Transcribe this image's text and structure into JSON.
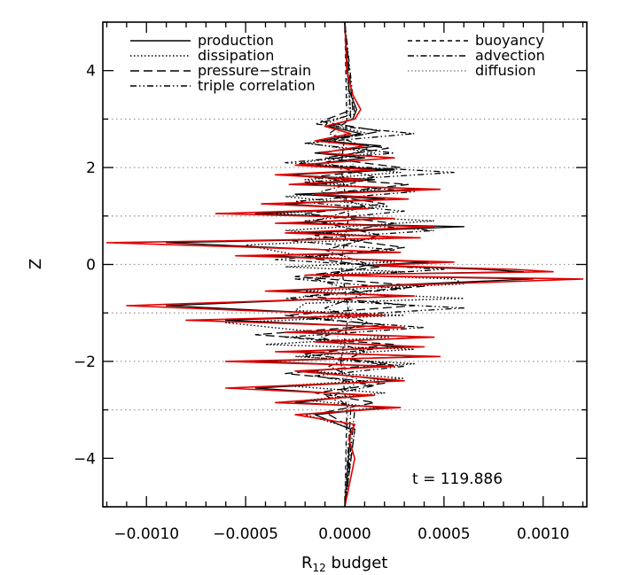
{
  "chart_data": {
    "type": "line",
    "xlabel": "R",
    "xlabel_sub": "12",
    "xlabel_suffix": " budget",
    "ylabel": "Z",
    "xlim": [
      -0.00122,
      0.00122
    ],
    "ylim": [
      -5,
      5
    ],
    "x_ticks": [
      -0.001,
      -0.0005,
      0.0,
      0.0005,
      0.001
    ],
    "x_tick_labels": [
      "−0.0010",
      "−0.0005",
      "0.0000",
      "0.0005",
      "0.0010"
    ],
    "y_ticks": [
      -4,
      -2,
      0,
      2,
      4
    ],
    "y_tick_labels": [
      "−4",
      "−2",
      "0",
      "2",
      "4"
    ],
    "reference_lines_z": [
      -3,
      -2,
      -1,
      0,
      1,
      2,
      3
    ],
    "annotation": "t = 119.886",
    "legend": [
      {
        "label": "production",
        "style": "solid",
        "color": "#000000"
      },
      {
        "label": "dissipation",
        "style": "dotted",
        "color": "#000000"
      },
      {
        "label": "pressure−strain",
        "style": "longdash",
        "color": "#000000"
      },
      {
        "label": "triple correlation",
        "style": "dashdotdot",
        "color": "#000000"
      },
      {
        "label": "buoyancy",
        "style": "dashed",
        "color": "#000000"
      },
      {
        "label": "advection",
        "style": "dashdot",
        "color": "#000000"
      },
      {
        "label": "diffusion",
        "style": "dotted-gray",
        "color": "#888888"
      }
    ],
    "series": [
      {
        "style": "solid",
        "color": "#e00000",
        "x": [
          0,
          1e-05,
          4e-05,
          8e-05,
          5e-05,
          -0.0001,
          3e-05,
          -0.00015,
          0.0001,
          -0.00012,
          0.00025,
          -0.00025,
          0.00015,
          -0.00035,
          0.0001,
          -0.00028,
          0.00048,
          -0.00015,
          0.00032,
          -0.00042,
          0.00012,
          -0.00065,
          0.00025,
          -0.00035,
          0.00045,
          -0.0003,
          0.00038,
          -0.0012,
          -0.00042,
          0.00028,
          -0.00055,
          0.00055,
          0.00015,
          0.00085,
          0.00105,
          -0.0002,
          0.0012,
          0.00015,
          -0.0004,
          0.00035,
          -0.0011,
          -0.0005,
          0.0002,
          -0.0008,
          0.0003,
          -0.0003,
          0.00045,
          -0.00015,
          0.0004,
          -0.00035,
          0.00048,
          -0.0006,
          0.00025,
          -0.00025,
          0.0003,
          -0.0006,
          0.00015,
          -0.00035,
          0.00028,
          -0.00025,
          5e-05,
          2e-05,
          5e-05,
          0
        ],
        "y": [
          5,
          4,
          3.5,
          3.2,
          3.0,
          2.85,
          2.7,
          2.55,
          2.45,
          2.3,
          2.2,
          2.05,
          1.95,
          1.85,
          1.75,
          1.65,
          1.55,
          1.45,
          1.35,
          1.25,
          1.15,
          1.05,
          0.95,
          0.85,
          0.78,
          0.65,
          0.55,
          0.45,
          0.35,
          0.25,
          0.18,
          0.05,
          -0.02,
          -0.1,
          -0.15,
          -0.22,
          -0.3,
          -0.45,
          -0.55,
          -0.65,
          -0.85,
          -0.95,
          -1.05,
          -1.15,
          -1.3,
          -1.4,
          -1.5,
          -1.6,
          -1.7,
          -1.8,
          -1.9,
          -2.0,
          -2.1,
          -2.2,
          -2.4,
          -2.55,
          -2.7,
          -2.85,
          -2.95,
          -3.1,
          -3.3,
          -3.6,
          -4,
          -5
        ]
      },
      {
        "style": "solid",
        "color": "#000000",
        "x": [
          0,
          2e-05,
          6e-05,
          4e-05,
          -8e-05,
          8e-05,
          -0.00012,
          0.00018,
          -0.00015,
          0.0001,
          -0.0002,
          0.00025,
          -0.0003,
          0.00015,
          -0.0002,
          0.0004,
          -0.00025,
          0.0002,
          -0.0003,
          0.0001,
          -0.00045,
          0.0002,
          -0.00025,
          0.0006,
          -0.0002,
          0.00035,
          -0.0009,
          -0.00035,
          0.0002,
          -0.0004,
          0.00042,
          0.0001,
          0.0007,
          0.0009,
          -0.00015,
          0.00095,
          0.0001,
          -0.0003,
          0.00028,
          -0.0009,
          -0.0004,
          0.00015,
          -0.0006,
          0.00025,
          -0.00022,
          0.0004,
          -0.0001,
          0.0003,
          -0.00025,
          0.0004,
          -0.00045,
          0.0002,
          -0.0002,
          0.00025,
          -0.00045,
          0.0001,
          -0.00025,
          0.0002,
          -0.00015,
          3e-05,
          0
        ],
        "y": [
          5,
          3.6,
          3.2,
          3.0,
          2.85,
          2.7,
          2.55,
          2.45,
          2.3,
          2.2,
          2.05,
          1.95,
          1.85,
          1.75,
          1.65,
          1.55,
          1.45,
          1.35,
          1.25,
          1.15,
          1.05,
          0.95,
          0.85,
          0.78,
          0.65,
          0.55,
          0.45,
          0.35,
          0.25,
          0.18,
          0.05,
          -0.02,
          -0.1,
          -0.15,
          -0.22,
          -0.3,
          -0.45,
          -0.55,
          -0.65,
          -0.85,
          -0.95,
          -1.05,
          -1.15,
          -1.3,
          -1.4,
          -1.5,
          -1.6,
          -1.7,
          -1.8,
          -1.9,
          -2.0,
          -2.1,
          -2.2,
          -2.4,
          -2.55,
          -2.7,
          -2.85,
          -2.95,
          -3.1,
          -3.4,
          -5
        ]
      },
      {
        "style": "dotted",
        "color": "#000000",
        "x": [
          0,
          3e-05,
          -0.0001,
          0.00012,
          -0.00018,
          0.00015,
          -0.00022,
          0.00028,
          -0.0002,
          0.00018,
          -0.0003,
          0.00022,
          -0.00035,
          0.00045,
          -0.0003,
          0.0003,
          -0.0005,
          -0.00025,
          0.00025,
          -0.0003,
          0.0003,
          -0.00015,
          0.00055,
          0.0006,
          -0.0002,
          0.0006,
          -0.0002,
          -0.00025,
          0.0003,
          -0.0006,
          -0.00025,
          0.00022,
          -0.0004,
          0.00035,
          -0.00025,
          0.00035,
          -0.00018,
          0.0003,
          -0.0003,
          0.0002,
          -0.0002,
          0.00018,
          -0.0002,
          5e-05,
          0
        ],
        "y": [
          5,
          3.1,
          2.9,
          2.7,
          2.5,
          2.3,
          2.1,
          1.9,
          1.75,
          1.55,
          1.4,
          1.2,
          1.05,
          0.9,
          0.7,
          0.55,
          0.4,
          0.2,
          0.05,
          -0.05,
          -0.15,
          -0.2,
          -0.3,
          -0.4,
          -0.55,
          -0.7,
          -0.8,
          -0.95,
          -1.05,
          -1.2,
          -1.35,
          -1.5,
          -1.65,
          -1.75,
          -1.9,
          -2.05,
          -2.2,
          -2.35,
          -2.5,
          -2.65,
          -2.8,
          -2.95,
          -3.1,
          -3.4,
          -5
        ]
      },
      {
        "style": "longdash",
        "color": "#000000",
        "x": [
          0,
          4e-05,
          -0.00012,
          0.00018,
          -8e-05,
          0.00022,
          -0.0001,
          0.00028,
          -0.00018,
          0.00032,
          -0.00012,
          0.0002,
          -0.0002,
          0.00025,
          -0.00015,
          0.0003,
          -0.00022,
          0.00018,
          -0.00025,
          0.0004,
          -0.0002,
          0.00035,
          -0.0003,
          0.0002,
          -0.00045,
          0.00025,
          -0.0002,
          0.00022,
          -0.0003,
          0.0002,
          -0.00015,
          0.00015,
          -0.0001,
          5e-05,
          0
        ],
        "y": [
          5,
          3.2,
          2.95,
          2.75,
          2.55,
          2.4,
          2.2,
          2.0,
          1.8,
          1.65,
          1.45,
          1.25,
          1.05,
          0.85,
          0.6,
          0.35,
          0.15,
          -0.05,
          -0.25,
          -0.45,
          -0.65,
          -0.85,
          -1.05,
          -1.25,
          -1.45,
          -1.65,
          -1.85,
          -2.05,
          -2.25,
          -2.45,
          -2.65,
          -2.85,
          -3.05,
          -3.4,
          -5
        ]
      },
      {
        "style": "dashdotdot",
        "color": "#000000",
        "x": [
          0,
          5e-05,
          -0.00015,
          0.00035,
          -0.0002,
          0.00025,
          -0.0003,
          0.00055,
          -0.0002,
          0.00035,
          -0.00025,
          0.0003,
          -0.0002,
          0.00045,
          -0.0003,
          0.00025,
          -0.00035,
          0.0005,
          -0.00025,
          0.0003,
          -0.0003,
          0.0006,
          -0.00025,
          0.0004,
          -0.0003,
          0.00025,
          -0.0002,
          0.0003,
          -0.00015,
          0.00015,
          -0.0001,
          5e-05,
          0
        ],
        "y": [
          5,
          3.1,
          2.9,
          2.7,
          2.5,
          2.3,
          2.1,
          1.9,
          1.7,
          1.5,
          1.3,
          1.1,
          0.9,
          0.7,
          0.5,
          0.3,
          0.1,
          -0.1,
          -0.3,
          -0.5,
          -0.7,
          -0.9,
          -1.1,
          -1.3,
          -1.5,
          -1.7,
          -1.9,
          -2.1,
          -2.3,
          -2.5,
          -2.7,
          -3.0,
          -5
        ]
      },
      {
        "style": "dashdot",
        "color": "#000000",
        "x": [
          0,
          3e-05,
          -8e-05,
          0.00012,
          -0.0001,
          0.00015,
          -0.00012,
          0.0001,
          -0.00015,
          0.00018,
          -0.0001,
          0.00012,
          -0.00015,
          0.0001,
          -0.0001,
          0.00012,
          -0.00012,
          0.0001,
          -8e-05,
          8e-05,
          -5e-05,
          3e-05,
          0
        ],
        "y": [
          5,
          3.0,
          2.7,
          2.4,
          2.1,
          1.8,
          1.5,
          1.2,
          0.9,
          0.6,
          0.3,
          0.0,
          -0.3,
          -0.6,
          -0.9,
          -1.2,
          -1.5,
          -1.8,
          -2.1,
          -2.4,
          -2.7,
          -3.0,
          -5
        ]
      },
      {
        "style": "dashed",
        "color": "#000000",
        "x": [
          0,
          1e-05,
          -2e-05,
          2e-05,
          -2e-05,
          2e-05,
          -2e-05,
          1e-05,
          0
        ],
        "y": [
          5,
          3.0,
          2.0,
          1.0,
          0.0,
          -1.0,
          -2.0,
          -3.0,
          -5
        ]
      },
      {
        "style": "dotted-gray",
        "color": "#888888",
        "x": [
          0,
          2e-05,
          -8e-05,
          6e-05,
          -5e-05,
          8e-05,
          -6e-05,
          5e-05,
          -8e-05,
          6e-05,
          -4e-05,
          2e-05,
          0
        ],
        "y": [
          5,
          3.0,
          2.5,
          2.0,
          1.5,
          1.0,
          0.5,
          0.0,
          -0.5,
          -1.0,
          -1.5,
          -2.5,
          -5
        ]
      }
    ]
  }
}
